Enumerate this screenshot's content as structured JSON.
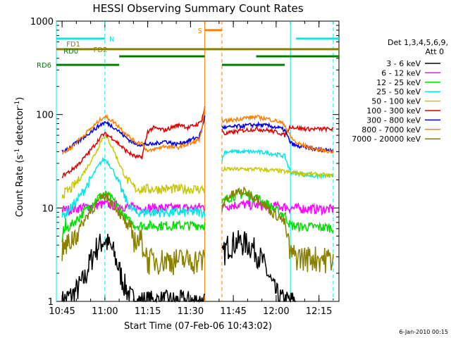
{
  "chart_data": {
    "type": "line",
    "title": "HESSI Observing Summary Count Rates",
    "xlabel": "Start Time (07-Feb-06 10:43:02)",
    "ylabel_text": "Count Rate (s",
    "ylabel_sup": "-1",
    "ylabel_tail": " detector",
    "ylabel_end": ")",
    "footer": "6-Jan-2010 00:15",
    "x_tick_labels": [
      "10:45",
      "11:00",
      "11:15",
      "11:30",
      "11:45",
      "12:00",
      "12:15"
    ],
    "x_tick_minutes": [
      0,
      15,
      30,
      45,
      60,
      75,
      90
    ],
    "xlim_minutes": [
      -2,
      97
    ],
    "y_tick_labels": [
      "1",
      "10",
      "100",
      "1000"
    ],
    "y_tick_values": [
      1,
      10,
      100,
      1000
    ],
    "ylim": [
      1,
      1000
    ],
    "yscale": "log",
    "legend": {
      "position": "right",
      "header1": "Det 1,3,4,5,6,9,",
      "header2": "Att 0",
      "entries": [
        {
          "label": "3 - 6 keV",
          "color": "#000000"
        },
        {
          "label": "6 - 12 keV",
          "color": "#ff00ff"
        },
        {
          "label": "12 - 25 keV",
          "color": "#00e000"
        },
        {
          "label": "25 - 50 keV",
          "color": "#00e8e8"
        },
        {
          "label": "50 - 100 keV",
          "color": "#c8c800"
        },
        {
          "label": "100 - 300 keV",
          "color": "#e00000"
        },
        {
          "label": "300 - 800 keV",
          "color": "#0000e0"
        },
        {
          "label": "800 - 7000 keV",
          "color": "#ff8000"
        },
        {
          "label": "7000 - 20000 keV",
          "color": "#8a8000"
        }
      ]
    },
    "flags": [
      {
        "label": "N",
        "color": "#00e8e8",
        "y": 650,
        "segments": [
          [
            -2,
            15
          ],
          [
            82,
            97
          ]
        ]
      },
      {
        "label": "S",
        "color": "#ff8000",
        "y": 800,
        "segments": [
          [
            50,
            56
          ]
        ]
      },
      {
        "label": "FD1",
        "color": "#8a8000",
        "y": 500,
        "segments": [
          [
            -2,
            97
          ]
        ]
      },
      {
        "label": "FD2",
        "color": "#8a8000",
        "y": 500,
        "segments": []
      },
      {
        "label": "RD0",
        "color": "#008000",
        "y": 420,
        "segments": [
          [
            20,
            50
          ],
          [
            68,
            97
          ]
        ]
      },
      {
        "label": "RD6",
        "color": "#008000",
        "y": 340,
        "segments": [
          [
            -2,
            20
          ],
          [
            56,
            78
          ]
        ]
      }
    ],
    "vlines": [
      {
        "minute": -2,
        "color": "#00e8e8",
        "style": "solid"
      },
      {
        "minute": 15,
        "color": "#00e8e8",
        "style": "dashed"
      },
      {
        "minute": 80,
        "color": "#00e8e8",
        "style": "solid"
      },
      {
        "minute": 95,
        "color": "#00e8e8",
        "style": "dashed"
      },
      {
        "minute": 50,
        "color": "#ff8000",
        "style": "solid"
      },
      {
        "minute": 56,
        "color": "#ff8000",
        "style": "dashed"
      }
    ],
    "gap_minutes": [
      50,
      56
    ],
    "series": [
      {
        "name": "3 - 6 keV",
        "color": "#000000",
        "x": [
          0,
          4,
          8,
          10,
          12,
          14,
          15,
          16,
          18,
          20,
          22,
          24,
          26,
          28,
          30,
          34,
          38,
          42,
          46,
          49,
          50,
          57,
          58,
          60,
          62,
          64,
          66,
          68,
          70,
          72,
          74,
          76,
          78,
          80,
          82
        ],
        "y": [
          1,
          1.2,
          1.8,
          2.8,
          3.8,
          4.4,
          4.5,
          4.2,
          3.4,
          2.2,
          1.5,
          1.1,
          1,
          1,
          1,
          1,
          1,
          1,
          1,
          1,
          1,
          3.5,
          4.0,
          4.3,
          4.4,
          4.3,
          4.0,
          3.5,
          2.8,
          2.0,
          1.4,
          1.1,
          1,
          1,
          1
        ]
      },
      {
        "name": "6 - 12 keV",
        "color": "#ff00ff",
        "x": [
          0,
          4,
          8,
          12,
          15,
          18,
          22,
          26,
          30,
          34,
          38,
          42,
          46,
          49,
          50,
          57,
          58,
          62,
          66,
          70,
          74,
          78,
          80,
          84,
          88,
          92,
          95
        ],
        "y": [
          9.5,
          9.8,
          10.2,
          10.8,
          11,
          10.8,
          10.3,
          10,
          10,
          10,
          10,
          10,
          10,
          10.3,
          10.3,
          10.5,
          10.6,
          10.9,
          10.8,
          10.6,
          10.5,
          10.3,
          10.0,
          9.9,
          9.8,
          9.7,
          9.7
        ]
      },
      {
        "name": "12 - 25 keV",
        "color": "#00e000",
        "x": [
          0,
          3,
          6,
          9,
          12,
          14,
          15,
          16,
          18,
          20,
          22,
          24,
          26,
          28,
          32,
          36,
          40,
          44,
          48,
          50,
          57,
          58,
          60,
          62,
          64,
          66,
          68,
          70,
          72,
          74,
          76,
          78,
          80,
          84,
          88,
          92,
          95
        ],
        "y": [
          5.5,
          6.5,
          8,
          10,
          12.5,
          13.8,
          14,
          13.5,
          12,
          10,
          8,
          7,
          6.5,
          6.5,
          6.5,
          6.5,
          6.5,
          6.5,
          6.6,
          6.6,
          12,
          12.8,
          13.5,
          14,
          14,
          13.6,
          13,
          12,
          11,
          10,
          9,
          8.5,
          6.5,
          6.3,
          6.3,
          6.2,
          6.2
        ]
      },
      {
        "name": "25 - 50 keV",
        "color": "#00e8e8",
        "x": [
          0,
          3,
          6,
          9,
          12,
          14,
          15,
          16,
          18,
          20,
          22,
          24,
          26,
          28,
          30,
          32,
          36,
          40,
          44,
          48,
          50,
          57,
          60,
          64,
          68,
          72,
          76,
          78,
          80,
          84,
          88,
          92,
          95
        ],
        "y": [
          8,
          10,
          13,
          18,
          26,
          32,
          33,
          31,
          25,
          18,
          13,
          10,
          9,
          9,
          9,
          9,
          9,
          9,
          9,
          9,
          9,
          40,
          40,
          40,
          40,
          39,
          37,
          36,
          24,
          23,
          22,
          22,
          22
        ]
      },
      {
        "name": "50 - 100 keV",
        "color": "#c8c800",
        "x": [
          0,
          3,
          6,
          9,
          12,
          14,
          15,
          16,
          18,
          20,
          22,
          24,
          26,
          28,
          30,
          32,
          36,
          40,
          44,
          48,
          50,
          57,
          60,
          64,
          68,
          72,
          76,
          78,
          80,
          84,
          88,
          92,
          95
        ],
        "y": [
          14,
          16,
          20,
          28,
          40,
          55,
          60,
          55,
          42,
          30,
          22,
          18,
          16,
          16,
          16,
          16,
          16,
          16,
          16,
          16,
          16,
          26,
          26,
          26,
          26,
          25.5,
          25,
          24.5,
          24,
          23.5,
          23,
          22.5,
          22
        ]
      },
      {
        "name": "100 - 300 keV",
        "color": "#e00000",
        "x": [
          0,
          3,
          6,
          9,
          12,
          14,
          15,
          16,
          18,
          20,
          22,
          24,
          26,
          28,
          30,
          32,
          34,
          36,
          38,
          40,
          42,
          44,
          46,
          48,
          49,
          50,
          57,
          60,
          64,
          68,
          72,
          76,
          78,
          80,
          82,
          86,
          90,
          95
        ],
        "y": [
          22,
          25,
          30,
          38,
          50,
          60,
          62,
          60,
          55,
          48,
          42,
          38,
          35,
          35,
          66,
          72,
          70,
          68,
          72,
          76,
          78,
          72,
          76,
          80,
          90,
          120,
          62,
          65,
          68,
          70,
          68,
          64,
          60,
          75,
          72,
          70,
          70,
          70
        ]
      },
      {
        "name": "300 - 800 keV",
        "color": "#0000e0",
        "x": [
          0,
          3,
          6,
          9,
          12,
          14,
          15,
          16,
          18,
          20,
          22,
          24,
          26,
          28,
          30,
          32,
          34,
          36,
          38,
          40,
          42,
          44,
          46,
          48,
          49,
          50,
          57,
          60,
          64,
          68,
          72,
          76,
          78,
          80,
          82,
          86,
          90,
          95
        ],
        "y": [
          40,
          45,
          52,
          62,
          72,
          80,
          82,
          80,
          74,
          66,
          58,
          52,
          48,
          48,
          48,
          48,
          50,
          52,
          50,
          48,
          50,
          52,
          55,
          58,
          70,
          95,
          72,
          74,
          76,
          78,
          76,
          72,
          68,
          50,
          46,
          44,
          42,
          42
        ]
      },
      {
        "name": "800 - 7000 keV",
        "color": "#ff8000",
        "x": [
          0,
          3,
          6,
          9,
          12,
          14,
          15,
          16,
          18,
          20,
          22,
          24,
          26,
          28,
          30,
          32,
          34,
          36,
          38,
          40,
          42,
          44,
          46,
          48,
          49,
          50,
          57,
          60,
          64,
          68,
          72,
          76,
          78,
          80,
          82,
          86,
          90,
          95
        ],
        "y": [
          38,
          44,
          54,
          66,
          80,
          92,
          95,
          92,
          84,
          74,
          64,
          56,
          50,
          50,
          40,
          42,
          44,
          46,
          45,
          44,
          46,
          48,
          50,
          54,
          70,
          115,
          85,
          88,
          92,
          94,
          90,
          84,
          78,
          58,
          50,
          45,
          42,
          40
        ]
      },
      {
        "name": "7000 - 20000 keV",
        "color": "#8a8000",
        "x": [
          0,
          3,
          6,
          9,
          12,
          14,
          15,
          16,
          18,
          20,
          22,
          24,
          26,
          28,
          30,
          32,
          36,
          40,
          44,
          48,
          50,
          57,
          58,
          60,
          62,
          64,
          66,
          68,
          70,
          72,
          74,
          76,
          78,
          80,
          84,
          88,
          92,
          95
        ],
        "y": [
          3.5,
          4.5,
          6,
          8.5,
          11,
          13,
          13.5,
          13,
          11,
          9,
          7,
          5.5,
          4.5,
          4.5,
          2.8,
          2.8,
          2.8,
          2.8,
          2.8,
          2.8,
          2.8,
          12,
          13,
          14,
          15,
          15,
          14,
          13,
          11.5,
          10,
          8.8,
          8,
          7,
          3.2,
          3,
          3,
          2.9,
          2.9
        ]
      }
    ]
  }
}
